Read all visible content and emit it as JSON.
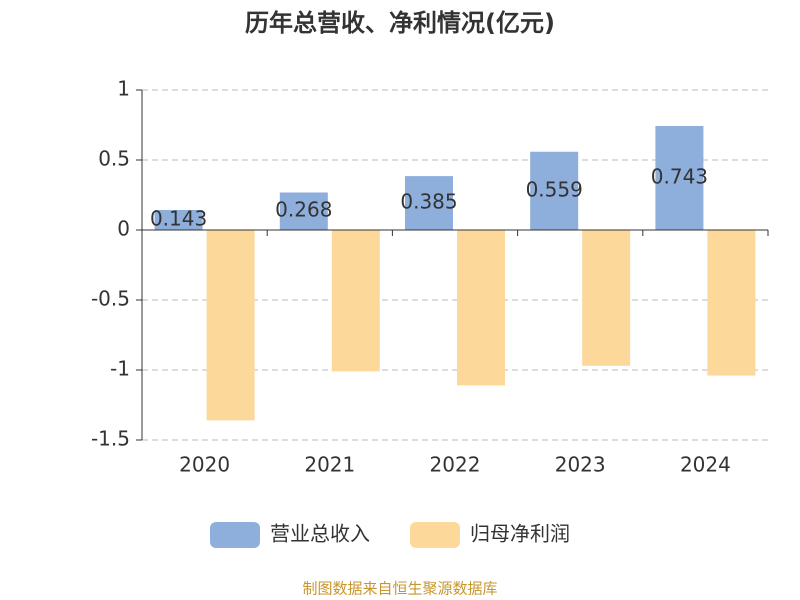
{
  "chart_data": {
    "type": "bar",
    "title": "历年总营收、净利情况(亿元)",
    "categories": [
      "2020",
      "2021",
      "2022",
      "2023",
      "2024"
    ],
    "series": [
      {
        "name": "营业总收入",
        "color": "#8eaedb",
        "values": [
          0.143,
          0.268,
          0.385,
          0.559,
          0.743
        ]
      },
      {
        "name": "归母净利润",
        "color": "#fdd89b",
        "values": [
          -1.36,
          -1.01,
          -1.11,
          -0.97,
          -1.04
        ]
      }
    ],
    "data_labels_series": 0,
    "ylim": [
      -1.5,
      1
    ],
    "yticks": [
      -1.5,
      -1,
      -0.5,
      0,
      0.5,
      1
    ],
    "grid": true,
    "legend": "bottom",
    "source": "制图数据来自恒生聚源数据库"
  }
}
